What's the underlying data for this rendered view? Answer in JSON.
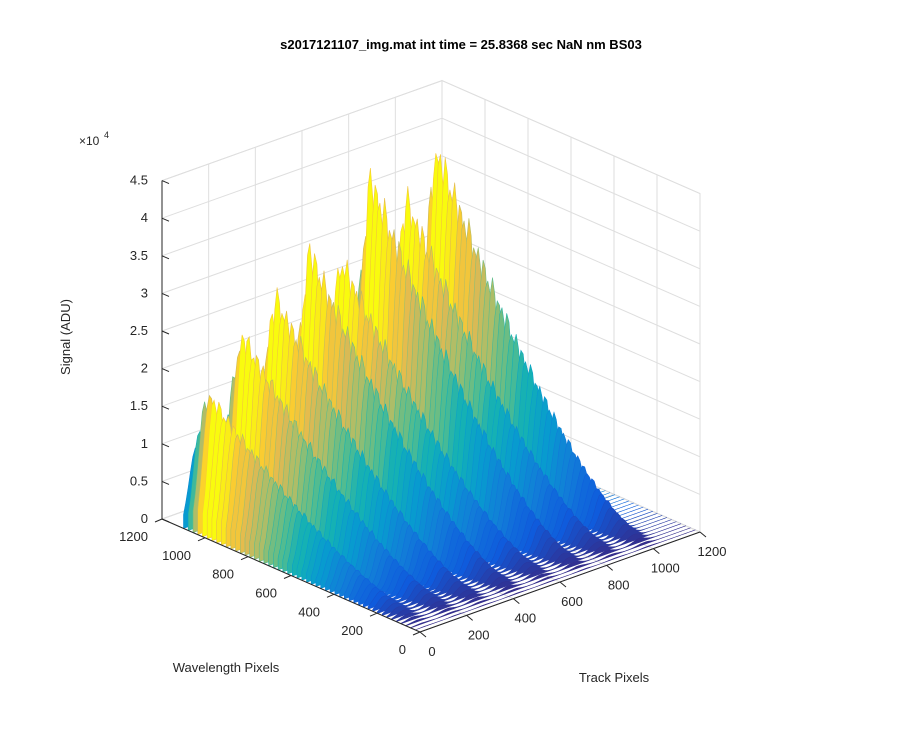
{
  "chart_data": {
    "type": "surface",
    "title": "s2017121107_img.mat int time = 25.8368 sec  NaN nm BS03",
    "xlabel": "Track Pixels",
    "ylabel": "Wavelength Pixels",
    "zlabel": "Signal (ADU)",
    "xlim": [
      0,
      1200
    ],
    "ylim": [
      0,
      1200
    ],
    "zlim": [
      0,
      45000
    ],
    "x_ticks": [
      "0",
      "200",
      "400",
      "600",
      "800",
      "1000",
      "1200"
    ],
    "y_ticks": [
      "0",
      "200",
      "400",
      "600",
      "800",
      "1000",
      "1200"
    ],
    "z_ticks": [
      "0",
      "0.5",
      "1",
      "1.5",
      "2",
      "2.5",
      "3",
      "3.5",
      "4",
      "4.5"
    ],
    "z_multiplier_base": "×10",
    "z_multiplier_exp": "4",
    "grid": true,
    "colormap": "parula",
    "tracks": [
      {
        "center": 50,
        "peak": 18500,
        "peak_wavelength": 1040
      },
      {
        "center": 175,
        "peak": 25500,
        "peak_wavelength": 1020
      },
      {
        "center": 300,
        "peak": 29500,
        "peak_wavelength": 1000
      },
      {
        "center": 440,
        "peak": 34000,
        "peak_wavelength": 990
      },
      {
        "center": 580,
        "peak": 31500,
        "peak_wavelength": 1000
      },
      {
        "center": 720,
        "peak": 40500,
        "peak_wavelength": 1010
      },
      {
        "center": 860,
        "peak": 36500,
        "peak_wavelength": 1000
      },
      {
        "center": 1000,
        "peak": 41500,
        "peak_wavelength": 1010
      }
    ]
  }
}
